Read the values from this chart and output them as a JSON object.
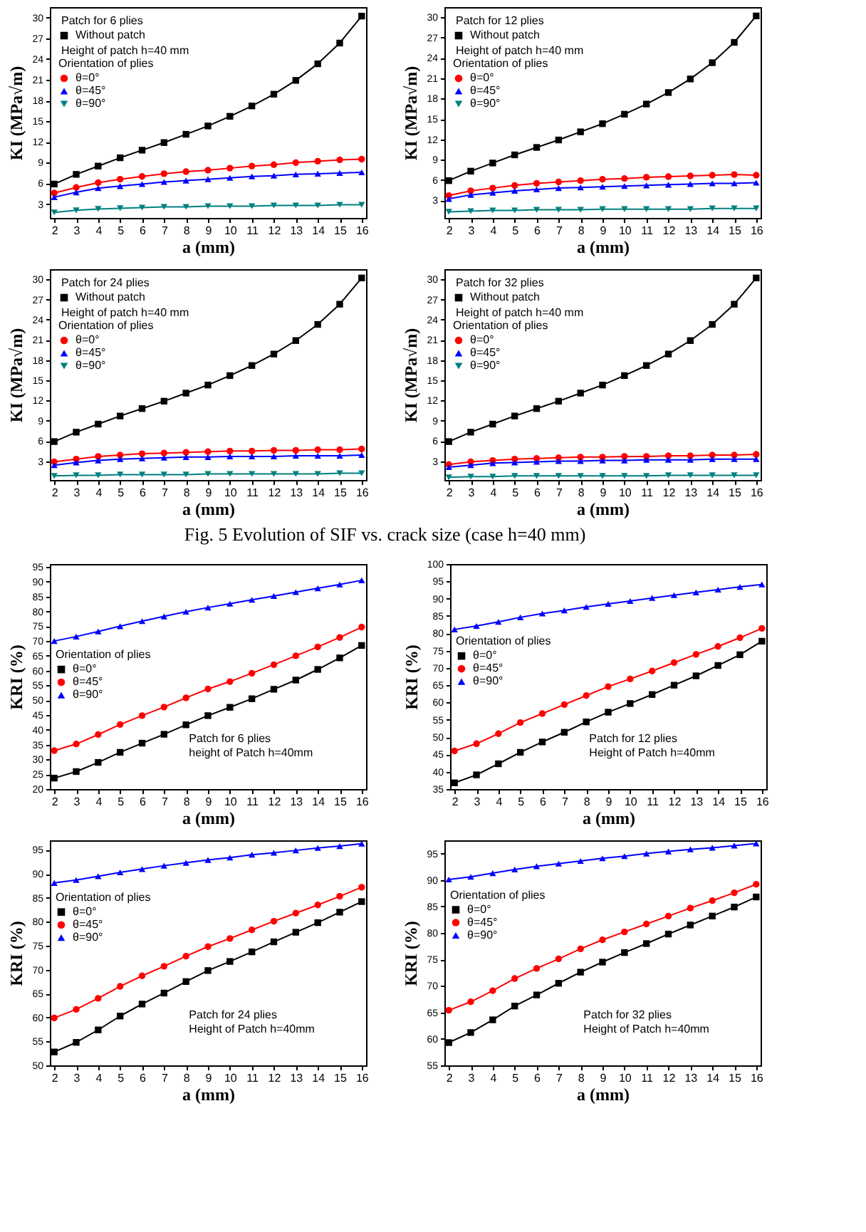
{
  "chart_data": [
    {
      "type": "line",
      "x": [
        2,
        3,
        4,
        5,
        6,
        7,
        8,
        9,
        10,
        11,
        12,
        13,
        14,
        15,
        16
      ],
      "xlim": [
        1.8,
        16.2
      ],
      "xticks": [
        2,
        3,
        4,
        5,
        6,
        7,
        8,
        9,
        10,
        11,
        12,
        13,
        14,
        15,
        16
      ],
      "ylim": [
        1,
        31.5
      ],
      "yticks": [
        3,
        6,
        9,
        12,
        15,
        18,
        21,
        24,
        27,
        30
      ],
      "xlabel": "a (mm)",
      "ylabel": "KI (MPa√m)",
      "legend": "top left",
      "legend_title": "Orientation of plies",
      "annotations": [
        "Patch for 6 plies",
        "Height of patch h=40 mm"
      ],
      "series": [
        {
          "name": "Without patch",
          "color": "#000000",
          "marker": "square",
          "values": [
            5.9,
            7.3,
            8.5,
            9.7,
            10.8,
            11.9,
            13.1,
            14.3,
            15.7,
            17.2,
            18.9,
            20.9,
            23.3,
            26.3,
            30.2
          ]
        },
        {
          "name": "θ=0°",
          "color": "#ff0000",
          "marker": "circle",
          "values": [
            4.6,
            5.4,
            6.1,
            6.6,
            7.0,
            7.4,
            7.7,
            7.9,
            8.2,
            8.5,
            8.7,
            9.0,
            9.2,
            9.4,
            9.5
          ]
        },
        {
          "name": "θ=45°",
          "color": "#0000ff",
          "marker": "triangle",
          "values": [
            4.0,
            4.7,
            5.3,
            5.6,
            5.9,
            6.2,
            6.4,
            6.6,
            6.8,
            7.0,
            7.1,
            7.3,
            7.4,
            7.5,
            7.6
          ]
        },
        {
          "name": "θ=90°",
          "color": "#008080",
          "marker": "triangle-down",
          "values": [
            1.8,
            2.1,
            2.3,
            2.4,
            2.5,
            2.6,
            2.6,
            2.7,
            2.7,
            2.7,
            2.8,
            2.8,
            2.8,
            2.9,
            2.9
          ]
        }
      ]
    },
    {
      "type": "line",
      "x": [
        2,
        3,
        4,
        5,
        6,
        7,
        8,
        9,
        10,
        11,
        12,
        13,
        14,
        15,
        16
      ],
      "xlim": [
        1.8,
        16.2
      ],
      "xticks": [
        2,
        3,
        4,
        5,
        6,
        7,
        8,
        9,
        10,
        11,
        12,
        13,
        14,
        15,
        16
      ],
      "ylim": [
        0.4,
        31.5
      ],
      "yticks": [
        3,
        6,
        9,
        12,
        15,
        18,
        21,
        24,
        27,
        30
      ],
      "xlabel": "a (mm)",
      "ylabel": "KI (MPa√m)",
      "legend": "top left",
      "legend_title": "Orientation of plies",
      "annotations": [
        "Patch for 12 plies",
        "Height of patch h=40 mm"
      ],
      "series": [
        {
          "name": "Without patch",
          "color": "#000000",
          "marker": "square",
          "values": [
            5.9,
            7.3,
            8.5,
            9.7,
            10.8,
            11.9,
            13.1,
            14.3,
            15.7,
            17.2,
            18.9,
            20.9,
            23.3,
            26.3,
            30.2
          ]
        },
        {
          "name": "θ=0°",
          "color": "#ff0000",
          "marker": "circle",
          "values": [
            3.7,
            4.4,
            4.8,
            5.2,
            5.5,
            5.7,
            5.9,
            6.1,
            6.2,
            6.4,
            6.5,
            6.6,
            6.7,
            6.8,
            6.7
          ]
        },
        {
          "name": "θ=45°",
          "color": "#0000ff",
          "marker": "triangle",
          "values": [
            3.2,
            3.8,
            4.1,
            4.4,
            4.6,
            4.8,
            4.9,
            5.0,
            5.1,
            5.2,
            5.3,
            5.4,
            5.5,
            5.5,
            5.6
          ]
        },
        {
          "name": "θ=90°",
          "color": "#008080",
          "marker": "triangle-down",
          "values": [
            1.3,
            1.4,
            1.5,
            1.5,
            1.6,
            1.6,
            1.6,
            1.7,
            1.7,
            1.7,
            1.7,
            1.7,
            1.8,
            1.8,
            1.8
          ]
        }
      ]
    },
    {
      "type": "line",
      "x": [
        2,
        3,
        4,
        5,
        6,
        7,
        8,
        9,
        10,
        11,
        12,
        13,
        14,
        15,
        16
      ],
      "xlim": [
        1.8,
        16.2
      ],
      "xticks": [
        2,
        3,
        4,
        5,
        6,
        7,
        8,
        9,
        10,
        11,
        12,
        13,
        14,
        15,
        16
      ],
      "ylim": [
        0.2,
        31.5
      ],
      "yticks": [
        3,
        6,
        9,
        12,
        15,
        18,
        21,
        24,
        27,
        30
      ],
      "xlabel": "a (mm)",
      "ylabel": "KI (MPa√m)",
      "legend": "top left",
      "legend_title": "Orientation of plies",
      "annotations": [
        "Patch for 24 plies",
        "Height of patch h=40 mm"
      ],
      "series": [
        {
          "name": "Without patch",
          "color": "#000000",
          "marker": "square",
          "values": [
            5.9,
            7.3,
            8.5,
            9.7,
            10.8,
            11.9,
            13.1,
            14.3,
            15.7,
            17.2,
            18.9,
            20.9,
            23.3,
            26.3,
            30.2
          ]
        },
        {
          "name": "θ=0°",
          "color": "#ff0000",
          "marker": "circle",
          "values": [
            2.9,
            3.3,
            3.7,
            3.9,
            4.1,
            4.2,
            4.3,
            4.4,
            4.5,
            4.5,
            4.6,
            4.6,
            4.7,
            4.7,
            4.8
          ]
        },
        {
          "name": "θ=45°",
          "color": "#0000ff",
          "marker": "triangle",
          "values": [
            2.4,
            2.8,
            3.1,
            3.3,
            3.4,
            3.5,
            3.6,
            3.6,
            3.7,
            3.7,
            3.7,
            3.8,
            3.8,
            3.8,
            3.9
          ]
        },
        {
          "name": "θ=90°",
          "color": "#008080",
          "marker": "triangle-down",
          "values": [
            0.8,
            0.9,
            0.9,
            1.0,
            1.0,
            1.0,
            1.0,
            1.1,
            1.1,
            1.1,
            1.1,
            1.1,
            1.1,
            1.2,
            1.2
          ]
        }
      ]
    },
    {
      "type": "line",
      "x": [
        2,
        3,
        4,
        5,
        6,
        7,
        8,
        9,
        10,
        11,
        12,
        13,
        14,
        15,
        16
      ],
      "xlim": [
        1.8,
        16.2
      ],
      "xticks": [
        2,
        3,
        4,
        5,
        6,
        7,
        8,
        9,
        10,
        11,
        12,
        13,
        14,
        15,
        16
      ],
      "ylim": [
        0.2,
        31.5
      ],
      "yticks": [
        3,
        6,
        9,
        12,
        15,
        18,
        21,
        24,
        27,
        30
      ],
      "xlabel": "a (mm)",
      "ylabel": "KI (MPa√m)",
      "legend": "top left",
      "legend_title": "Orientation of plies",
      "annotations": [
        "Patch for 32 plies",
        "Height of patch h=40 mm",
        "Fig. 5 Evolution of SIF vs. crack size (case h=40 mm)"
      ],
      "series": [
        {
          "name": "Without patch",
          "color": "#000000",
          "marker": "square",
          "values": [
            5.9,
            7.3,
            8.5,
            9.7,
            10.8,
            11.9,
            13.1,
            14.3,
            15.7,
            17.2,
            18.9,
            20.9,
            23.3,
            26.3,
            30.2
          ]
        },
        {
          "name": "θ=0°",
          "color": "#ff0000",
          "marker": "circle",
          "values": [
            2.5,
            2.9,
            3.1,
            3.3,
            3.4,
            3.5,
            3.6,
            3.6,
            3.7,
            3.7,
            3.8,
            3.8,
            3.9,
            3.9,
            4.0
          ]
        },
        {
          "name": "θ=45°",
          "color": "#0000ff",
          "marker": "triangle",
          "values": [
            2.1,
            2.4,
            2.7,
            2.8,
            2.9,
            3.0,
            3.0,
            3.1,
            3.1,
            3.2,
            3.2,
            3.2,
            3.3,
            3.3,
            3.3
          ]
        },
        {
          "name": "θ=90°",
          "color": "#008080",
          "marker": "triangle-down",
          "values": [
            0.6,
            0.7,
            0.7,
            0.8,
            0.8,
            0.8,
            0.8,
            0.8,
            0.8,
            0.8,
            0.9,
            0.9,
            0.9,
            0.9,
            0.9
          ]
        }
      ]
    },
    {
      "type": "line",
      "x": [
        2,
        3,
        4,
        5,
        6,
        7,
        8,
        9,
        10,
        11,
        12,
        13,
        14,
        15,
        16
      ],
      "xlim": [
        1.8,
        16.2
      ],
      "xticks": [
        2,
        3,
        4,
        5,
        6,
        7,
        8,
        9,
        10,
        11,
        12,
        13,
        14,
        15,
        16
      ],
      "ylim": [
        20,
        96
      ],
      "yticks": [
        20,
        25,
        30,
        35,
        40,
        45,
        50,
        55,
        60,
        65,
        70,
        75,
        80,
        85,
        90,
        95
      ],
      "xlabel": "a (mm)",
      "ylabel": "KRI (%)",
      "legend": "left",
      "legend_title": "Orientation of plies",
      "annotations": [
        "Patch for 6 plies",
        "height of Patch h=40mm"
      ],
      "series": [
        {
          "name": "θ=0°",
          "color": "#000000",
          "marker": "square",
          "values": [
            23.7,
            25.9,
            29.0,
            32.4,
            35.5,
            38.5,
            41.7,
            44.8,
            47.6,
            50.5,
            53.7,
            56.8,
            60.4,
            64.3,
            68.5
          ]
        },
        {
          "name": "θ=45°",
          "color": "#ff0000",
          "marker": "circle",
          "values": [
            33.0,
            35.2,
            38.4,
            41.8,
            44.8,
            47.7,
            50.8,
            53.8,
            56.3,
            59.1,
            62.0,
            65.0,
            68.0,
            71.2,
            74.7
          ]
        },
        {
          "name": "θ=90°",
          "color": "#0000ff",
          "marker": "triangle",
          "values": [
            70.0,
            71.5,
            73.2,
            75.0,
            76.7,
            78.3,
            79.9,
            81.3,
            82.6,
            83.9,
            85.2,
            86.5,
            87.8,
            89.1,
            90.5
          ]
        }
      ]
    },
    {
      "type": "line",
      "x": [
        2,
        3,
        4,
        5,
        6,
        7,
        8,
        9,
        10,
        11,
        12,
        13,
        14,
        15,
        16
      ],
      "xlim": [
        1.8,
        16.2
      ],
      "xticks": [
        2,
        3,
        4,
        5,
        6,
        7,
        8,
        9,
        10,
        11,
        12,
        13,
        14,
        15,
        16
      ],
      "ylim": [
        35,
        100
      ],
      "yticks": [
        35,
        40,
        45,
        50,
        55,
        60,
        65,
        70,
        75,
        80,
        85,
        90,
        95,
        100
      ],
      "xlabel": "a (mm)",
      "ylabel": "KRI (%)",
      "legend": "left",
      "legend_title": "Orientation of plies",
      "annotations": [
        "Patch for 12 plies",
        "Height of Patch h=40mm"
      ],
      "series": [
        {
          "name": "θ=0°",
          "color": "#000000",
          "marker": "square",
          "values": [
            36.8,
            39.1,
            42.3,
            45.6,
            48.6,
            51.4,
            54.4,
            57.2,
            59.7,
            62.3,
            65.0,
            67.7,
            70.7,
            73.8,
            77.7
          ]
        },
        {
          "name": "θ=45°",
          "color": "#ff0000",
          "marker": "circle",
          "values": [
            46.0,
            48.1,
            51.0,
            54.2,
            56.8,
            59.4,
            62.0,
            64.6,
            66.8,
            69.1,
            71.5,
            73.9,
            76.2,
            78.7,
            81.4
          ]
        },
        {
          "name": "θ=90°",
          "color": "#0000ff",
          "marker": "triangle",
          "values": [
            81.1,
            82.1,
            83.3,
            84.6,
            85.7,
            86.6,
            87.6,
            88.5,
            89.3,
            90.2,
            91.0,
            91.8,
            92.6,
            93.4,
            94.1
          ]
        }
      ]
    },
    {
      "type": "line",
      "x": [
        2,
        3,
        4,
        5,
        6,
        7,
        8,
        9,
        10,
        11,
        12,
        13,
        14,
        15,
        16
      ],
      "xlim": [
        1.8,
        16.2
      ],
      "xticks": [
        2,
        3,
        4,
        5,
        6,
        7,
        8,
        9,
        10,
        11,
        12,
        13,
        14,
        15,
        16
      ],
      "ylim": [
        50,
        97
      ],
      "yticks": [
        50,
        55,
        60,
        65,
        70,
        75,
        80,
        85,
        90,
        95
      ],
      "xlabel": "a (mm)",
      "ylabel": "KRI (%)",
      "legend": "left",
      "legend_title": "Orientation of plies",
      "annotations": [
        "Patch for 24 plies",
        "Height of Patch h=40mm"
      ],
      "series": [
        {
          "name": "θ=0°",
          "color": "#000000",
          "marker": "square",
          "values": [
            52.8,
            54.8,
            57.4,
            60.3,
            62.8,
            65.1,
            67.5,
            69.8,
            71.7,
            73.7,
            75.8,
            77.8,
            79.8,
            82.0,
            84.2
          ]
        },
        {
          "name": "θ=45°",
          "color": "#ff0000",
          "marker": "circle",
          "values": [
            59.9,
            61.7,
            64.0,
            66.5,
            68.7,
            70.7,
            72.8,
            74.8,
            76.5,
            78.3,
            80.1,
            81.8,
            83.5,
            85.3,
            87.2
          ]
        },
        {
          "name": "θ=90°",
          "color": "#0000ff",
          "marker": "triangle",
          "values": [
            88.1,
            88.7,
            89.5,
            90.3,
            91.0,
            91.7,
            92.3,
            92.9,
            93.4,
            94.0,
            94.4,
            94.9,
            95.4,
            95.8,
            96.3
          ]
        }
      ]
    },
    {
      "type": "line",
      "x": [
        2,
        3,
        4,
        5,
        6,
        7,
        8,
        9,
        10,
        11,
        12,
        13,
        14,
        15,
        16
      ],
      "xlim": [
        1.8,
        16.2
      ],
      "xticks": [
        2,
        3,
        4,
        5,
        6,
        7,
        8,
        9,
        10,
        11,
        12,
        13,
        14,
        15,
        16
      ],
      "ylim": [
        55,
        97.5
      ],
      "yticks": [
        55,
        60,
        65,
        70,
        75,
        80,
        85,
        90,
        95
      ],
      "xlabel": "a (mm)",
      "ylabel": "KRI (%)",
      "legend": "left",
      "legend_title": "Orientation of plies",
      "annotations": [
        "Patch for 32 plies",
        "Height of Patch h=40mm"
      ],
      "series": [
        {
          "name": "θ=0°",
          "color": "#000000",
          "marker": "square",
          "values": [
            59.3,
            61.2,
            63.6,
            66.2,
            68.3,
            70.5,
            72.6,
            74.5,
            76.3,
            78.0,
            79.8,
            81.5,
            83.2,
            84.9,
            86.8
          ]
        },
        {
          "name": "θ=45°",
          "color": "#ff0000",
          "marker": "circle",
          "values": [
            65.4,
            67.0,
            69.1,
            71.4,
            73.3,
            75.1,
            77.0,
            78.7,
            80.2,
            81.7,
            83.2,
            84.7,
            86.1,
            87.6,
            89.2
          ]
        },
        {
          "name": "θ=90°",
          "color": "#0000ff",
          "marker": "triangle",
          "values": [
            90.1,
            90.6,
            91.3,
            92.0,
            92.6,
            93.1,
            93.6,
            94.1,
            94.5,
            95.0,
            95.4,
            95.8,
            96.1,
            96.5,
            96.9
          ]
        }
      ]
    }
  ]
}
